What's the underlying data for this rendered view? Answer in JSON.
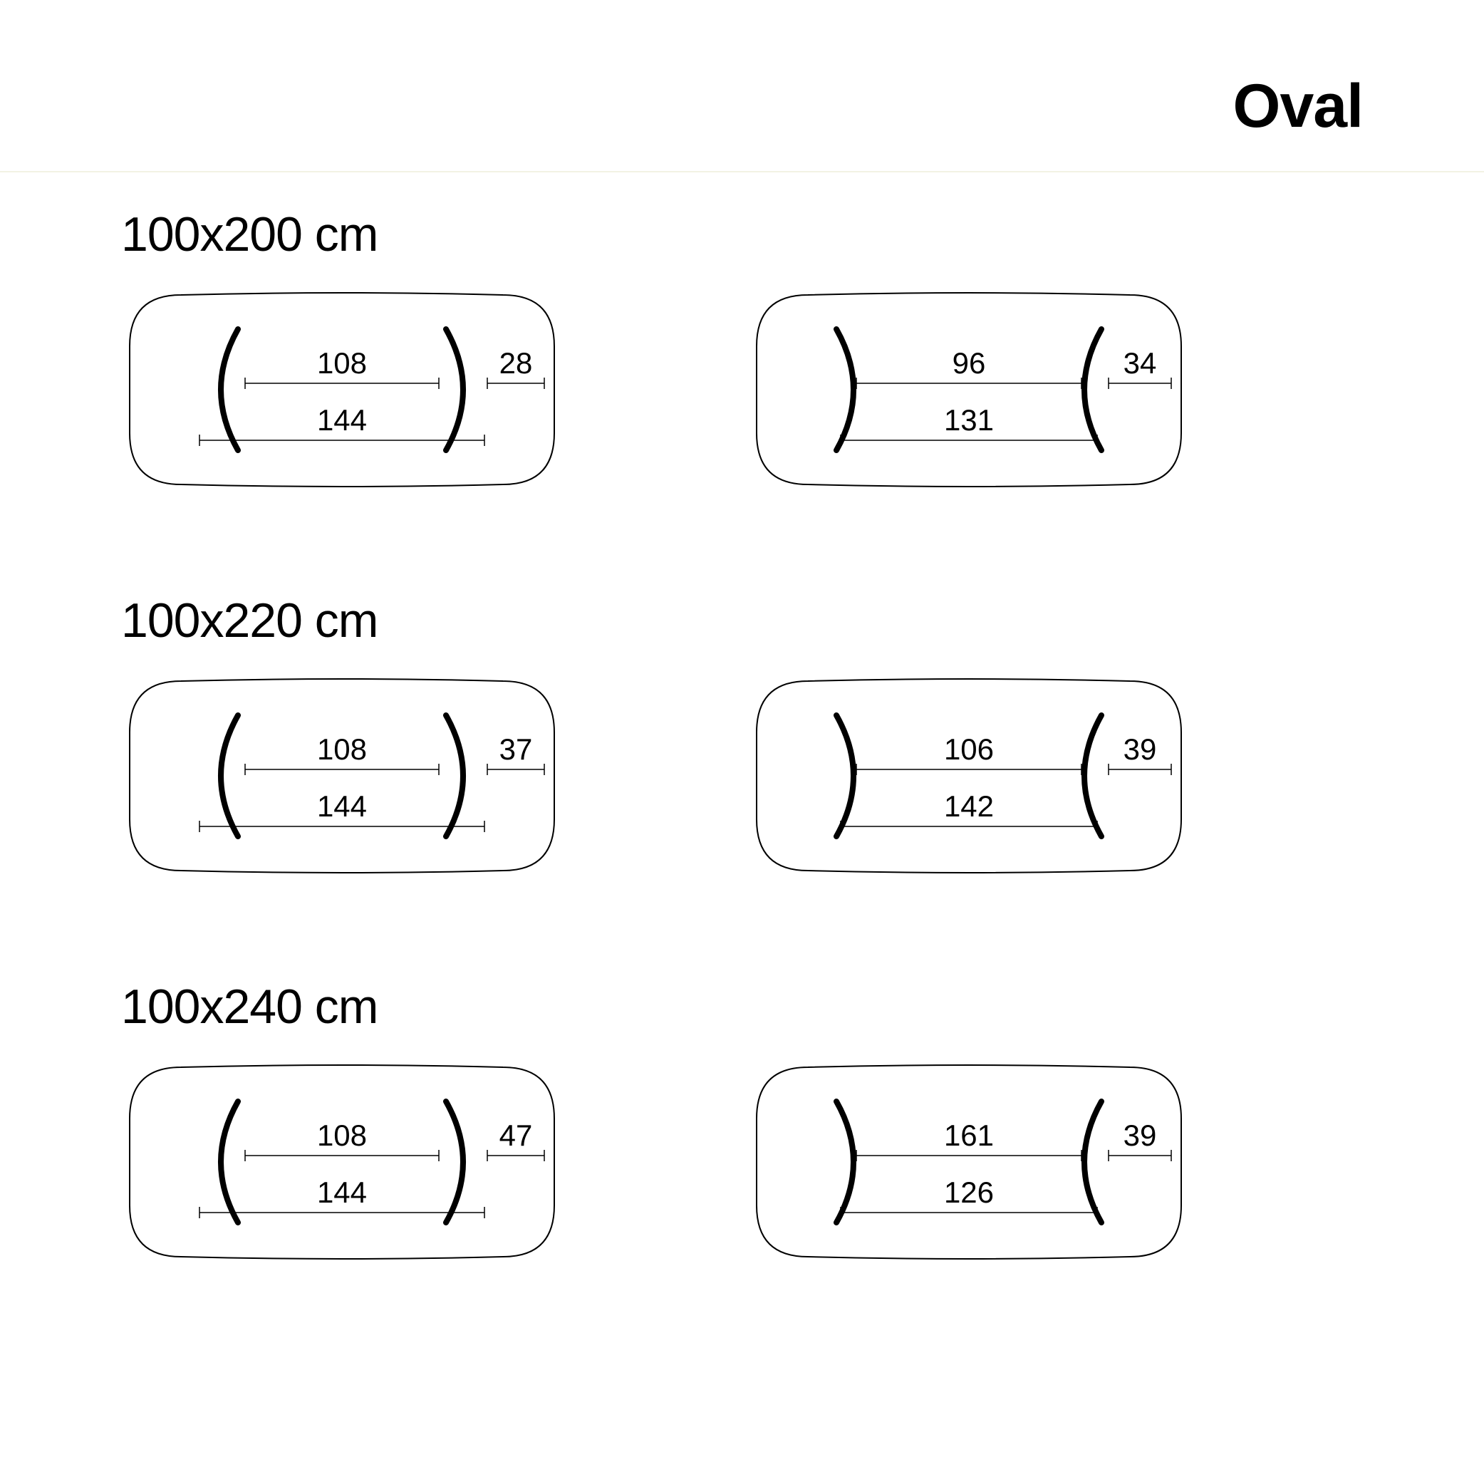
{
  "header": {
    "title": "Oval"
  },
  "stroke_color": "#000000",
  "leg_fill": "#000000",
  "outline_stroke_width": 2,
  "dim_stroke_width": 1.5,
  "leg_stroke_width": 8,
  "divider_color": "#f2f2e4",
  "title_fontsize": 86,
  "row_title_fontsize": 68,
  "dim_label_fontsize": 42,
  "rows": [
    {
      "title": "100x200 cm",
      "left": {
        "legs_out": true,
        "inner": 108,
        "overhang": 28,
        "outer": 144
      },
      "right": {
        "legs_out": false,
        "inner": 96,
        "overhang": 34,
        "outer": 131
      }
    },
    {
      "title": "100x220 cm",
      "left": {
        "legs_out": true,
        "inner": 108,
        "overhang": 37,
        "outer": 144
      },
      "right": {
        "legs_out": false,
        "inner": 106,
        "overhang": 39,
        "outer": 142
      }
    },
    {
      "title": "100x240 cm",
      "left": {
        "legs_out": true,
        "inner": 108,
        "overhang": 47,
        "outer": 144
      },
      "right": {
        "legs_out": false,
        "inner": 161,
        "overhang": 39,
        "outer": 126
      }
    }
  ]
}
